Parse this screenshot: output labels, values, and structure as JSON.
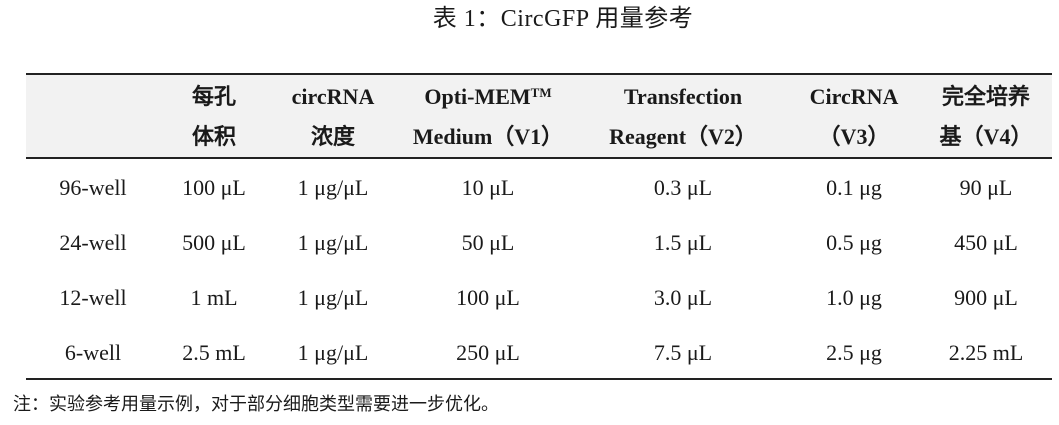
{
  "caption": "表 1：CircGFP 用量参考",
  "table": {
    "headers": [
      {
        "line1": "",
        "line2": ""
      },
      {
        "line1": "每孔",
        "line2": "体积"
      },
      {
        "line1": "circRNA",
        "line2": "浓度"
      },
      {
        "line1": "Opti-MEM",
        "line1_sup": "TM",
        "line2": "Medium（V1）"
      },
      {
        "line1": "Transfection",
        "line2": "Reagent（V2）"
      },
      {
        "line1": "CircRNA",
        "line2": "（V3）"
      },
      {
        "line1": "完全培养",
        "line2": "基（V4）"
      }
    ],
    "rows": [
      [
        "96-well",
        "100 μL",
        "1 μg/μL",
        "10 μL",
        "0.3 μL",
        "0.1 μg",
        "90 μL"
      ],
      [
        "24-well",
        "500 μL",
        "1 μg/μL",
        "50 μL",
        "1.5 μL",
        "0.5 μg",
        "450 μL"
      ],
      [
        "12-well",
        "1 mL",
        "1 μg/μL",
        "100 μL",
        "3.0 μL",
        "1.0 μg",
        "900 μL"
      ],
      [
        "6-well",
        "2.5 mL",
        "1 μg/μL",
        "250 μL",
        "7.5 μL",
        "2.5 μg",
        "2.25 mL"
      ]
    ]
  },
  "note": "注：实验参考用量示例，对于部分细胞类型需要进一步优化。"
}
